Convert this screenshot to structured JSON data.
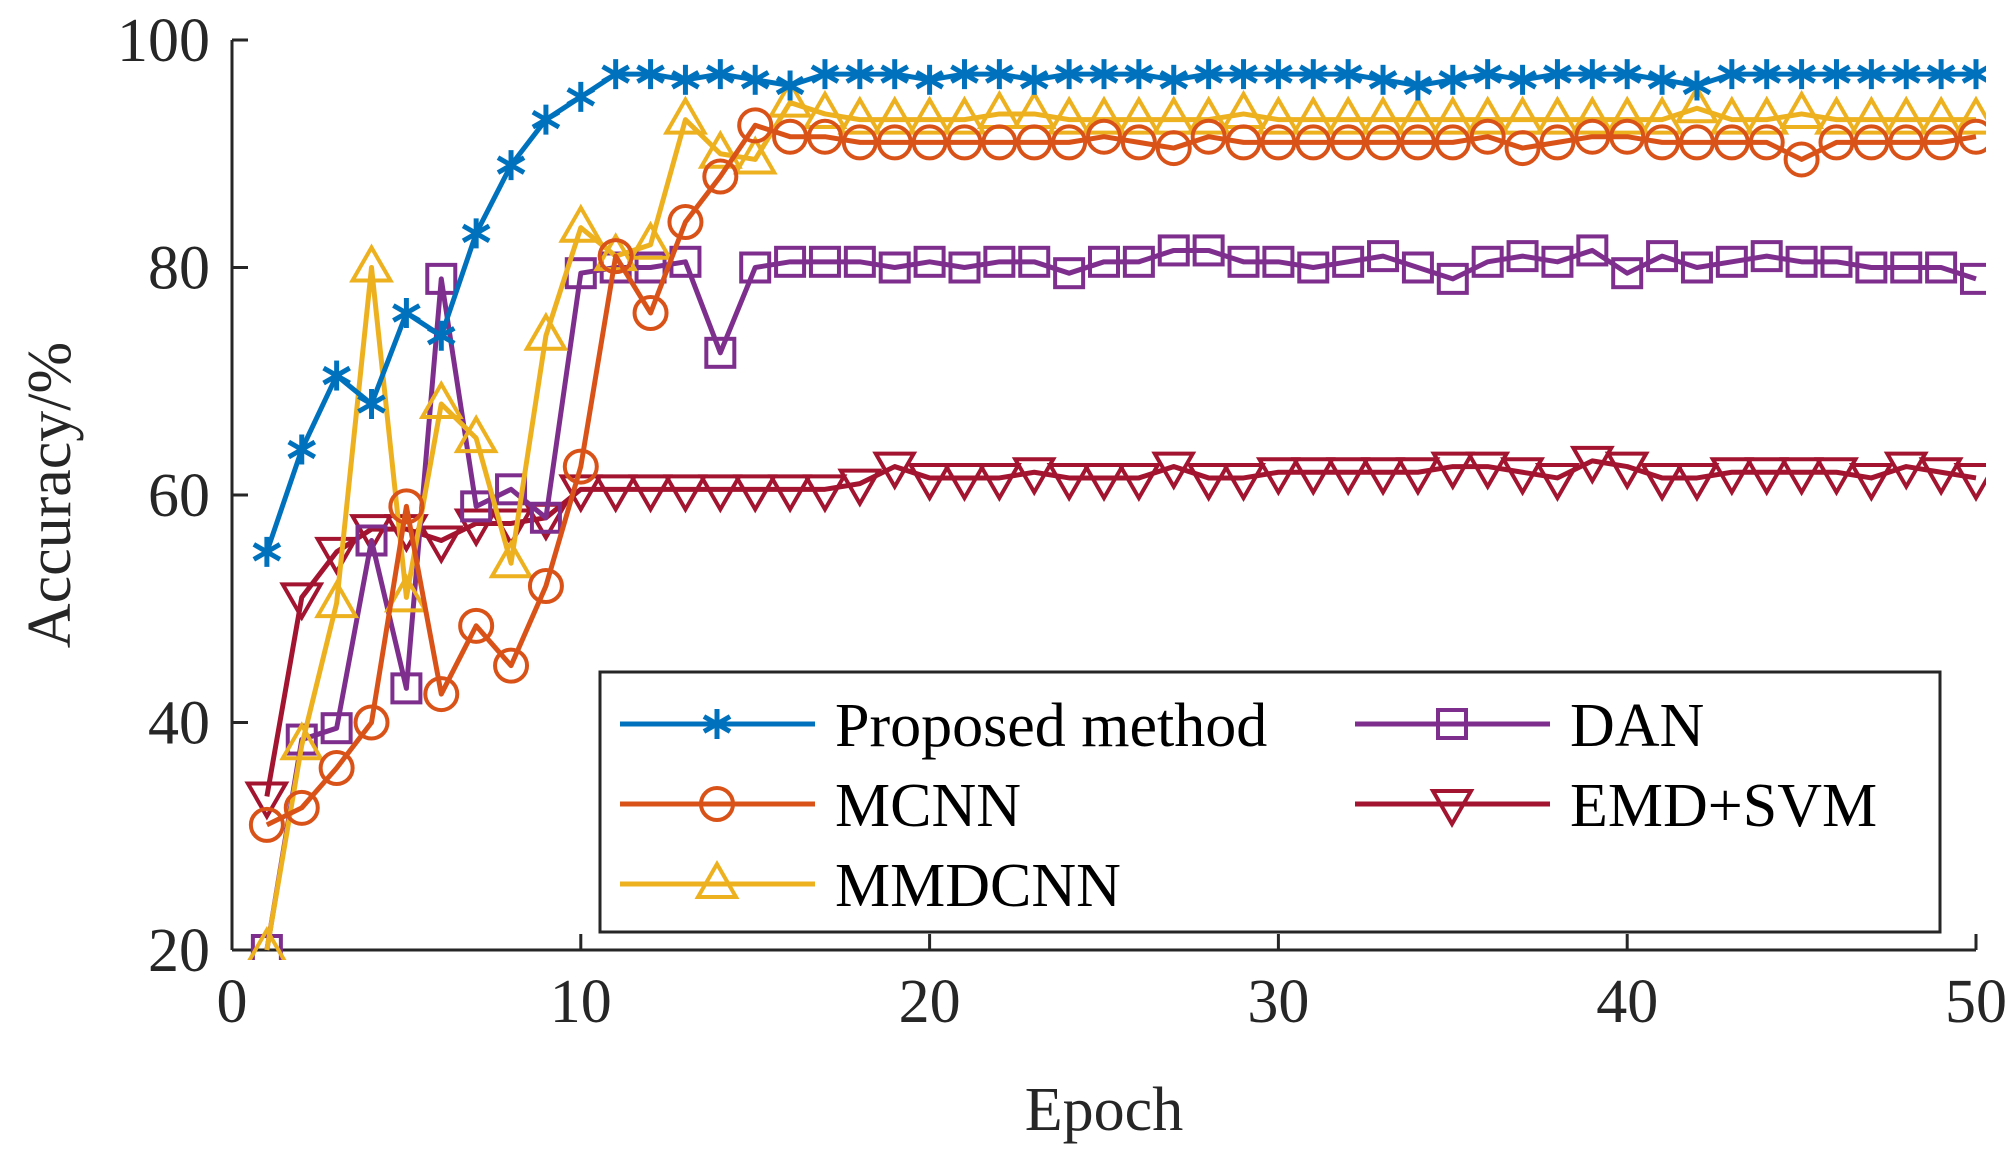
{
  "chart_data": {
    "type": "line",
    "xlabel": "Epoch",
    "ylabel": "Accuracy/%",
    "xlim": [
      0,
      50
    ],
    "ylim": [
      20,
      100
    ],
    "xticks": [
      0,
      10,
      20,
      30,
      40,
      50
    ],
    "yticks": [
      20,
      40,
      60,
      80,
      100
    ],
    "grid": false,
    "legend_position": "bottom-right",
    "x": [
      1,
      2,
      3,
      4,
      5,
      6,
      7,
      8,
      9,
      10,
      11,
      12,
      13,
      14,
      15,
      16,
      17,
      18,
      19,
      20,
      21,
      22,
      23,
      24,
      25,
      26,
      27,
      28,
      29,
      30,
      31,
      32,
      33,
      34,
      35,
      36,
      37,
      38,
      39,
      40,
      41,
      42,
      43,
      44,
      45,
      46,
      47,
      48,
      49,
      50
    ],
    "series": [
      {
        "name": "Proposed method",
        "color": "#0072BD",
        "marker": "asterisk",
        "values": [
          55,
          64,
          70.5,
          68,
          76,
          74,
          83,
          89,
          93,
          95,
          97,
          97,
          96.5,
          97,
          96.5,
          96,
          97,
          97,
          97,
          96.5,
          97,
          97,
          96.5,
          97,
          97,
          97,
          96.5,
          97,
          97,
          97,
          97,
          97,
          96.5,
          96,
          96.5,
          97,
          96.5,
          97,
          97,
          97,
          96.5,
          96,
          97,
          97,
          97,
          97,
          97,
          97,
          97,
          97
        ]
      },
      {
        "name": "MCNN",
        "color": "#D95319",
        "marker": "circle",
        "values": [
          31,
          32.5,
          36,
          40,
          59,
          42.5,
          48.5,
          45,
          52,
          62.5,
          81,
          76,
          84,
          88,
          92.5,
          91.5,
          91.5,
          91,
          91,
          91,
          91,
          91,
          91,
          91,
          91.5,
          91,
          90.5,
          91.5,
          91,
          91,
          91,
          91,
          91,
          91,
          91,
          91.5,
          90.5,
          91,
          91.5,
          91.5,
          91,
          91,
          91,
          91,
          89.5,
          91,
          91,
          91,
          91,
          91.5
        ]
      },
      {
        "name": "MMDCNN",
        "color": "#EDB120",
        "marker": "triangle-up",
        "values": [
          20,
          38,
          50.5,
          80,
          51,
          68,
          65,
          54,
          74,
          83.5,
          81,
          82,
          93,
          90,
          89.5,
          94.5,
          93.5,
          93,
          93,
          93,
          93,
          93.5,
          93.5,
          93,
          93,
          93,
          93,
          93,
          93.5,
          93,
          93,
          93,
          93,
          93,
          93,
          93,
          93,
          93,
          93,
          93,
          93,
          94,
          93,
          93,
          93.5,
          93,
          93,
          93,
          93,
          93
        ]
      },
      {
        "name": "DAN",
        "color": "#7E2F8E",
        "marker": "square",
        "values": [
          20,
          38.5,
          39.5,
          56,
          43,
          79,
          59,
          60.5,
          58,
          79.5,
          80,
          80,
          80.5,
          72.5,
          80,
          80.5,
          80.5,
          80.5,
          80,
          80.5,
          80,
          80.5,
          80.5,
          79.5,
          80.5,
          80.5,
          81.5,
          81.5,
          80.5,
          80.5,
          80,
          80.5,
          81,
          80,
          79,
          80.5,
          81,
          80.5,
          81.5,
          79.5,
          81,
          80,
          80.5,
          81,
          80.5,
          80.5,
          80,
          80,
          80,
          79
        ]
      },
      {
        "name": "EMD+SVM",
        "color": "#A2142F",
        "marker": "triangle-down",
        "values": [
          33.5,
          51,
          55,
          57,
          57,
          56,
          57.5,
          57.5,
          58,
          60.5,
          60.5,
          60.5,
          60.5,
          60.5,
          60.5,
          60.5,
          60.5,
          61,
          62.5,
          61.5,
          61.5,
          61.5,
          62,
          61.5,
          61.5,
          61.5,
          62.5,
          61.5,
          61.5,
          62,
          62,
          62,
          62,
          62,
          62.5,
          62.5,
          62,
          61.5,
          63,
          62.5,
          61.5,
          61.5,
          62,
          62,
          62,
          62,
          61.5,
          62.5,
          62,
          61.5
        ]
      }
    ]
  }
}
